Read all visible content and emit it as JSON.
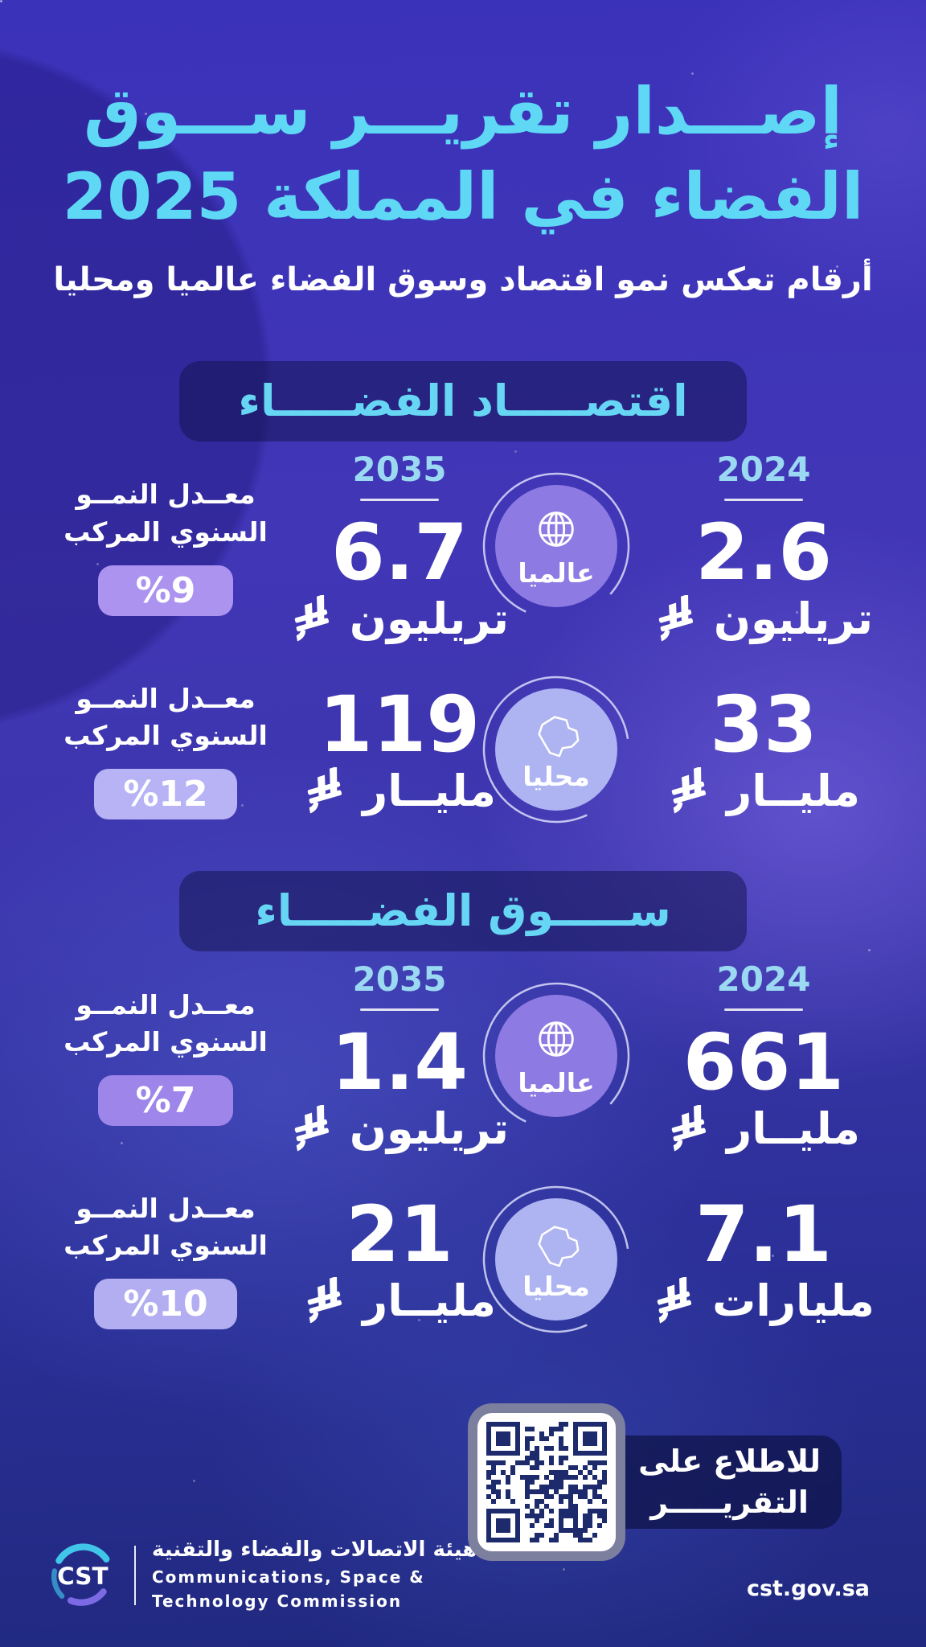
{
  "page": {
    "title_line1": "إصـــدار تقريـــر ســـوق",
    "title_line2": "الفضاء في المملكة 2025",
    "subtitle": "أرقام تعكس نمو اقتصاد وسوق الفضاء عالميا ومحليا"
  },
  "colors": {
    "title": "#5fd8f5",
    "year": "#9bd9f2",
    "section_title": "#66d6f4",
    "pill_bg": "rgba(16,18,74,0.5)",
    "qr_dark": "#1d2a6b",
    "tab_bg": "rgba(16,20,76,0.78)",
    "logo_cyan": "#41c6ea",
    "logo_purple": "#7b6ae4"
  },
  "sections": [
    {
      "title": "اقتصـــــاد الفضـــــاء",
      "year_future": "2035",
      "year_current": "2024",
      "rows": [
        {
          "scope": "عالميا",
          "future_value": "6.7",
          "future_unit": "تريليون",
          "current_value": "2.6",
          "current_unit": "تريليون",
          "growth_label_line1": "معــدل النمــو",
          "growth_label_line2": "السنوي المركب",
          "growth_value": "%9",
          "badge_color": "#ab93ef",
          "circle_color": "#8d7ae2"
        },
        {
          "scope": "محليا",
          "future_value": "119",
          "future_unit": "مليــار",
          "current_value": "33",
          "current_unit": "مليــار",
          "growth_label_line1": "معــدل النمــو",
          "growth_label_line2": "السنوي المركب",
          "growth_value": "%12",
          "badge_color": "#b7b3f4",
          "circle_color": "#aeb3f1"
        }
      ]
    },
    {
      "title": "ســـــوق الفضـــــاء",
      "year_future": "2035",
      "year_current": "2024",
      "rows": [
        {
          "scope": "عالميا",
          "future_value": "1.4",
          "future_unit": "تريليون",
          "current_value": "661",
          "current_unit": "مليــار",
          "growth_label_line1": "معــدل النمــو",
          "growth_label_line2": "السنوي المركب",
          "growth_value": "%7",
          "badge_color": "#9e85ea",
          "circle_color": "#8d7ae2"
        },
        {
          "scope": "محليا",
          "future_value": "21",
          "future_unit": "مليــار",
          "current_value": "7.1",
          "current_unit": "مليارات",
          "growth_label_line1": "معــدل النمــو",
          "growth_label_line2": "السنوي المركب",
          "growth_value": "%10",
          "badge_color": "#b3aef1",
          "circle_color": "#aeb3f1"
        }
      ]
    }
  ],
  "qr": {
    "line1": "للاطلاع على",
    "line2": "التقريـــــر"
  },
  "footer": {
    "logo_text": "CST",
    "org_ar": "هيئة الاتصالات والفضاء والتقنية",
    "org_en_line1": "Communications, Space &",
    "org_en_line2": "Technology Commission",
    "website": "cst.gov.sa"
  }
}
